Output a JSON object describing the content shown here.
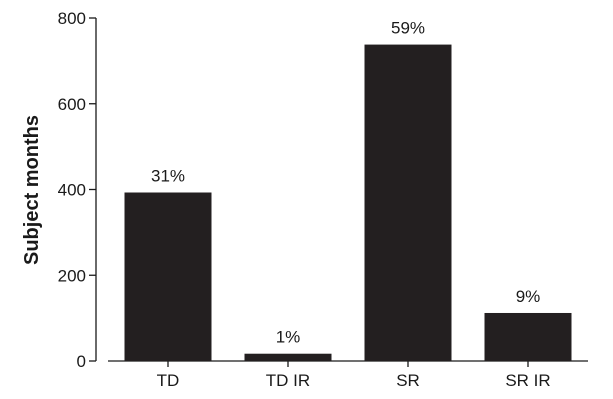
{
  "chart_data": {
    "type": "bar",
    "title": "",
    "xlabel": "",
    "ylabel": "Subject months",
    "ylim": [
      0,
      800
    ],
    "yticks": [
      0,
      200,
      400,
      600,
      800
    ],
    "categories": [
      "TD",
      "TD IR",
      "SR",
      "SR IR"
    ],
    "values": [
      393,
      17,
      738,
      112
    ],
    "data_labels": [
      "31%",
      "1%",
      "59%",
      "9%"
    ],
    "grid": false,
    "colors": {
      "bar": "#231f20",
      "axis": "#1a1a1a"
    }
  }
}
